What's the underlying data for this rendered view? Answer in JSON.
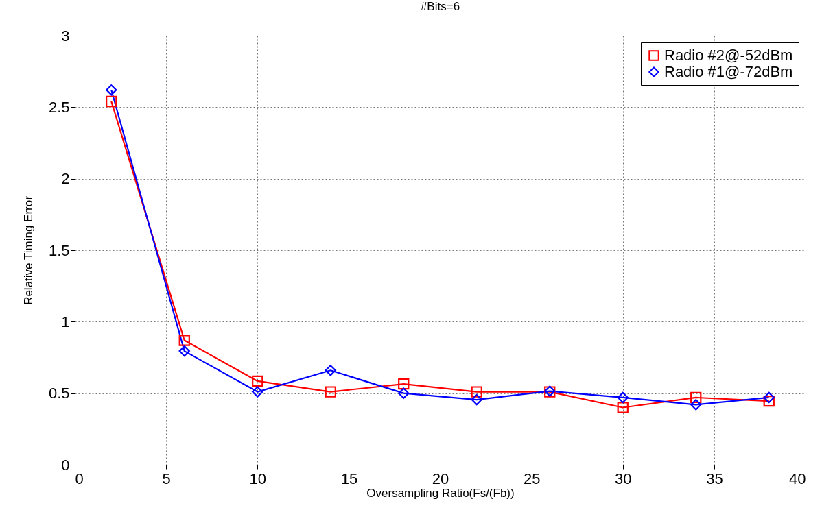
{
  "chart_data": {
    "type": "line",
    "title": "#Bits=6",
    "xlabel": "Oversampling Ratio(Fs/(Fb))",
    "ylabel": "Relative Timing Error",
    "x": [
      2,
      6,
      10,
      14,
      18,
      22,
      26,
      30,
      34,
      38
    ],
    "series": [
      {
        "name": "Radio #2@-52dBm",
        "color": "#ff0000",
        "marker": "square",
        "values": [
          2.54,
          0.87,
          0.585,
          0.51,
          0.565,
          0.51,
          0.51,
          0.4,
          0.47,
          0.445
        ]
      },
      {
        "name": "Radio #1@-72dBm",
        "color": "#0000ff",
        "marker": "diamond",
        "values": [
          2.62,
          0.795,
          0.51,
          0.66,
          0.5,
          0.455,
          0.515,
          0.47,
          0.42,
          0.47
        ]
      }
    ],
    "xlim": [
      0,
      40
    ],
    "xticks": [
      0,
      5,
      10,
      15,
      20,
      25,
      30,
      35,
      40
    ],
    "ylim": [
      0,
      3
    ],
    "yticks": [
      0,
      0.5,
      1,
      1.5,
      2,
      2.5,
      3
    ],
    "grid": true,
    "legend": "top right",
    "line_style": "solid"
  }
}
